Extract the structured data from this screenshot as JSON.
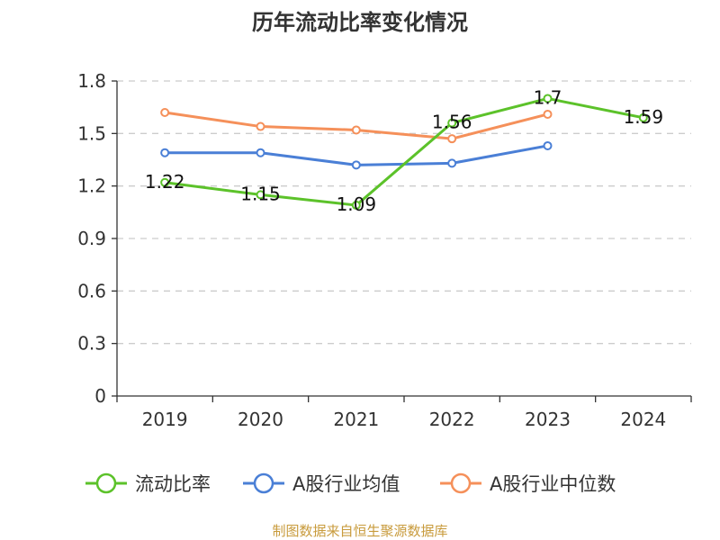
{
  "chart_data": {
    "type": "line",
    "title": "历年流动比率变化情况",
    "categories": [
      "2019",
      "2020",
      "2021",
      "2022",
      "2023",
      "2024"
    ],
    "ylim": [
      0,
      1.8
    ],
    "yticks": [
      "0",
      "0.3",
      "0.6",
      "0.9",
      "1.2",
      "1.5",
      "1.8"
    ],
    "grid": true,
    "legend_position": "bottom",
    "series": [
      {
        "name": "流动比率",
        "color": "#5cc22a",
        "values": [
          1.22,
          1.15,
          1.09,
          1.56,
          1.7,
          1.59
        ],
        "labels": [
          "1.22",
          "1.15",
          "1.09",
          "1.56",
          "1.7",
          "1.59"
        ]
      },
      {
        "name": "A股行业均值",
        "color": "#4a7fd6",
        "values": [
          1.39,
          1.39,
          1.32,
          1.33,
          1.43,
          null
        ]
      },
      {
        "name": "A股行业中位数",
        "color": "#f5905a",
        "values": [
          1.62,
          1.54,
          1.52,
          1.47,
          1.61,
          null
        ]
      }
    ]
  },
  "source": "制图数据来自恒生聚源数据库"
}
